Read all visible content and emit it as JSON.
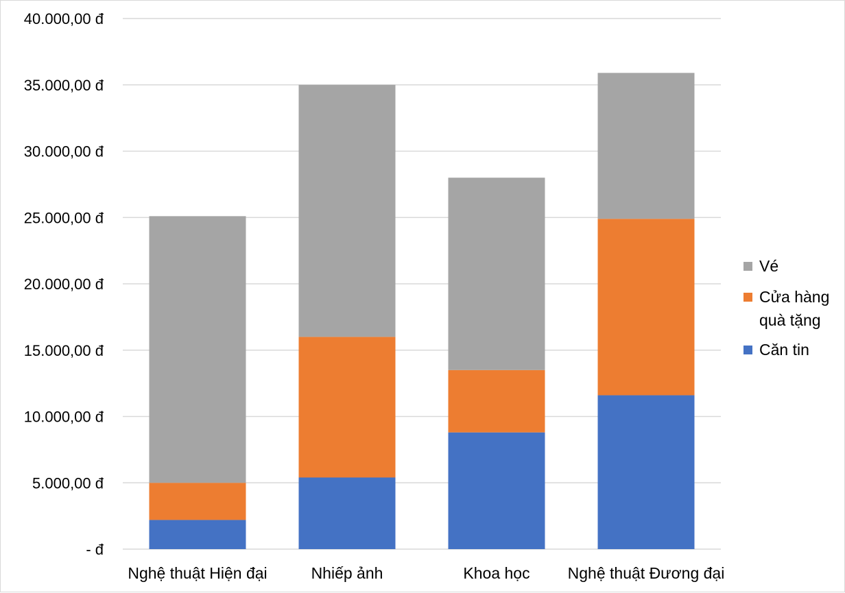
{
  "chart_data": {
    "type": "bar",
    "stacked": true,
    "title": "",
    "xlabel": "",
    "ylabel": "",
    "categories": [
      "Nghệ thuật Hiện đại",
      "Nhiếp ảnh",
      "Khoa học",
      "Nghệ thuật Đương đại"
    ],
    "series": [
      {
        "name": "Căn tin",
        "color": "#4472C4",
        "values": [
          2200,
          5400,
          8800,
          11600
        ]
      },
      {
        "name": "Cửa hàng quà tặng",
        "color": "#ED7D31",
        "values": [
          2800,
          10600,
          4700,
          13300
        ]
      },
      {
        "name": "Vé",
        "color": "#A5A5A5",
        "values": [
          20100,
          19000,
          14500,
          11000
        ]
      }
    ],
    "ylim": [
      0,
      40000
    ],
    "y_ticks": [
      0,
      5000,
      10000,
      15000,
      20000,
      25000,
      30000,
      35000,
      40000
    ],
    "y_tick_labels": [
      "- đ",
      "5.000,00 đ",
      "10.000,00 đ",
      "15.000,00 đ",
      "20.000,00 đ",
      "25.000,00 đ",
      "30.000,00 đ",
      "35.000,00 đ",
      "40.000,00 đ"
    ],
    "grid": true,
    "gridline_color": "#d9d9d9",
    "legend_position": "right",
    "legend_entries": [
      {
        "lines": [
          "Vé"
        ],
        "color": "#A5A5A5"
      },
      {
        "lines": [
          "Cửa hàng",
          "quà tặng"
        ],
        "color": "#ED7D31"
      },
      {
        "lines": [
          "Căn tin"
        ],
        "color": "#4472C4"
      }
    ]
  }
}
